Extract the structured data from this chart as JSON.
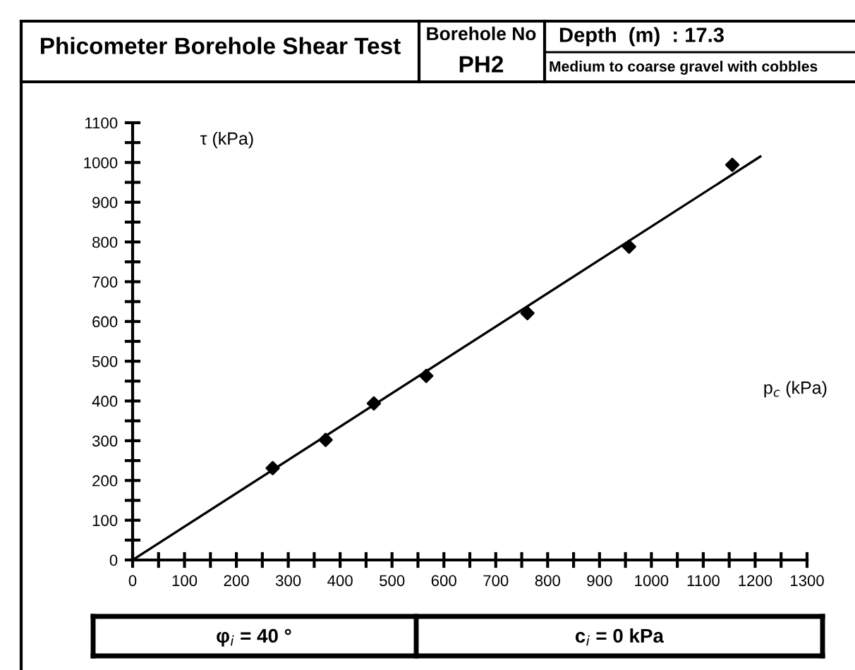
{
  "chart_data": {
    "type": "scatter",
    "title": "Phicometer Borehole Shear Test",
    "xlabel": "p$_{c}$ (kPa)",
    "ylabel": "τ (kPa)",
    "annotations": [
      "Borehole No",
      "PH2",
      "Depth  (m)  : 17.3",
      "Medium to coarse gravel with cobbles",
      "φ$_{i}$ = 40 °",
      "c$_{i}$ = 0 kPa"
    ],
    "series": [
      {
        "color": "#000000",
        "marker": "diamond",
        "x": [
          270,
          372,
          465,
          566,
          761,
          957,
          1156
        ],
        "values": [
          231,
          302,
          394,
          463,
          621,
          788,
          994
        ]
      },
      {
        "type": "line",
        "color": "#000000",
        "line_style": "solid",
        "x": [
          0,
          1210
        ],
        "values": [
          0,
          1015
        ]
      }
    ],
    "xlim": [
      0,
      1300
    ],
    "ylim": [
      0,
      1100
    ],
    "xticks": [
      0,
      {
        "value": 50,
        "label": null
      },
      100,
      {
        "value": 150,
        "label": null
      },
      200,
      {
        "value": 250,
        "label": null
      },
      300,
      {
        "value": 350,
        "label": null
      },
      400,
      {
        "value": 450,
        "label": null
      },
      500,
      {
        "value": 550,
        "label": null
      },
      600,
      {
        "value": 650,
        "label": null
      },
      700,
      {
        "value": 750,
        "label": null
      },
      800,
      {
        "value": 850,
        "label": null
      },
      900,
      {
        "value": 950,
        "label": null
      },
      1000,
      {
        "value": 1050,
        "label": null
      },
      1100,
      {
        "value": 1150,
        "label": null
      },
      1200,
      {
        "value": 1250,
        "label": null
      },
      1300
    ],
    "yticks": [
      0,
      {
        "value": 50,
        "label": null
      },
      100,
      {
        "value": 150,
        "label": null
      },
      200,
      {
        "value": 250,
        "label": null
      },
      300,
      {
        "value": 350,
        "label": null
      },
      400,
      {
        "value": 450,
        "label": null
      },
      500,
      {
        "value": 550,
        "label": null
      },
      600,
      {
        "value": 650,
        "label": null
      },
      700,
      {
        "value": 750,
        "label": null
      },
      800,
      {
        "value": 850,
        "label": null
      },
      900,
      {
        "value": 950,
        "label": null
      },
      1000,
      {
        "value": 1050,
        "label": null
      },
      1100
    ],
    "grid": false,
    "legend": false
  }
}
